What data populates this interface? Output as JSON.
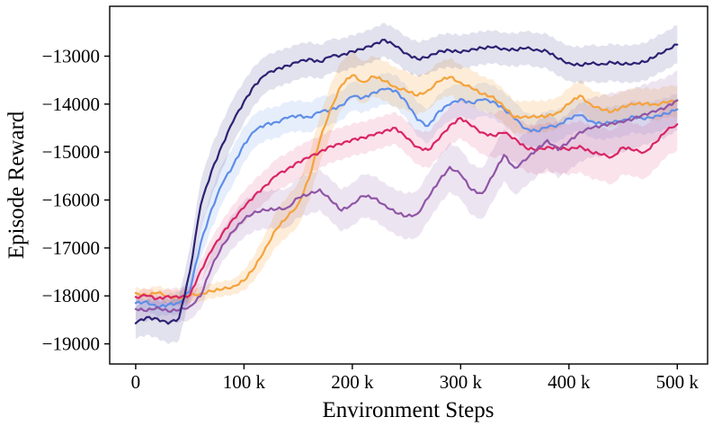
{
  "figure": {
    "background": "#ffffff"
  },
  "chart_data": {
    "type": "line",
    "title": "",
    "xlabel": "Environment Steps",
    "ylabel": "Episode Reward",
    "x_unit": "×1000 environment steps",
    "grid": false,
    "legend": "none",
    "xlim": [
      -24,
      528
    ],
    "ylim": [
      -19420,
      -11960
    ],
    "x_ticks": [
      {
        "value": 0,
        "label": "0"
      },
      {
        "value": 100,
        "label": "100 k"
      },
      {
        "value": 200,
        "label": "200 k"
      },
      {
        "value": 300,
        "label": "300 k"
      },
      {
        "value": 400,
        "label": "400 k"
      },
      {
        "value": 500,
        "label": "500 k"
      }
    ],
    "y_ticks": [
      {
        "value": -13000,
        "label": "−13000"
      },
      {
        "value": -14000,
        "label": "−14000"
      },
      {
        "value": -15000,
        "label": "−15000"
      },
      {
        "value": -16000,
        "label": "−16000"
      },
      {
        "value": -17000,
        "label": "−17000"
      },
      {
        "value": -18000,
        "label": "−18000"
      },
      {
        "value": -19000,
        "label": "−19000"
      }
    ],
    "x": [
      0,
      10,
      20,
      30,
      40,
      50,
      60,
      70,
      80,
      90,
      100,
      110,
      120,
      130,
      140,
      150,
      160,
      170,
      180,
      190,
      200,
      210,
      220,
      230,
      240,
      250,
      260,
      270,
      280,
      290,
      300,
      310,
      320,
      330,
      340,
      350,
      360,
      370,
      380,
      390,
      400,
      410,
      420,
      430,
      440,
      450,
      460,
      470,
      480,
      490,
      500
    ],
    "series": [
      {
        "name": "blue",
        "color": "#5f8ee8",
        "band_color": "rgba(100,149,237,0.16)",
        "values": [
          -18150,
          -18120,
          -18240,
          -18180,
          -18150,
          -17900,
          -16900,
          -16200,
          -15650,
          -15280,
          -14840,
          -14550,
          -14420,
          -14380,
          -14280,
          -14240,
          -14280,
          -14160,
          -14120,
          -14030,
          -13830,
          -13870,
          -13760,
          -13680,
          -13720,
          -13960,
          -14320,
          -14460,
          -14150,
          -14000,
          -13900,
          -13980,
          -13900,
          -13950,
          -14100,
          -14300,
          -14520,
          -14560,
          -14480,
          -14440,
          -14300,
          -14220,
          -14360,
          -14410,
          -14380,
          -14340,
          -14260,
          -14310,
          -14250,
          -14200,
          -14110
        ],
        "band_halfwidth_points": [
          [
            0,
            150
          ],
          [
            50,
            260
          ],
          [
            75,
            420
          ],
          [
            120,
            330
          ],
          [
            200,
            300
          ],
          [
            270,
            360
          ],
          [
            350,
            340
          ],
          [
            430,
            330
          ],
          [
            500,
            330
          ]
        ]
      },
      {
        "name": "orange",
        "color": "#f5a33c",
        "band_color": "rgba(246,166,60,0.20)",
        "values": [
          -17950,
          -17990,
          -17930,
          -18010,
          -18040,
          -17990,
          -17960,
          -17900,
          -17860,
          -17810,
          -17680,
          -17400,
          -17000,
          -16600,
          -16350,
          -16100,
          -15550,
          -14750,
          -14100,
          -13600,
          -13390,
          -13550,
          -13420,
          -13520,
          -13650,
          -13720,
          -13820,
          -13720,
          -13520,
          -13430,
          -13560,
          -13660,
          -13790,
          -13850,
          -14060,
          -14280,
          -14260,
          -14270,
          -14250,
          -14180,
          -13990,
          -13820,
          -14010,
          -14110,
          -14160,
          -14050,
          -14000,
          -13990,
          -14010,
          -13960,
          -13930
        ],
        "band_halfwidth_points": [
          [
            0,
            130
          ],
          [
            90,
            160
          ],
          [
            140,
            420
          ],
          [
            180,
            520
          ],
          [
            220,
            420
          ],
          [
            300,
            380
          ],
          [
            360,
            330
          ],
          [
            430,
            320
          ],
          [
            500,
            330
          ]
        ]
      },
      {
        "name": "crimson",
        "color": "#d92565",
        "band_color": "rgba(217,37,101,0.13)",
        "values": [
          -18030,
          -17990,
          -18060,
          -18010,
          -18030,
          -17990,
          -17480,
          -17050,
          -16700,
          -16400,
          -16150,
          -15900,
          -15700,
          -15480,
          -15360,
          -15210,
          -15110,
          -15000,
          -14880,
          -14830,
          -14740,
          -14700,
          -14640,
          -14560,
          -14500,
          -14700,
          -14900,
          -14960,
          -14720,
          -14450,
          -14290,
          -14450,
          -14600,
          -14660,
          -14590,
          -14720,
          -14910,
          -14960,
          -14900,
          -14910,
          -14950,
          -14880,
          -15000,
          -15050,
          -15110,
          -14900,
          -14960,
          -15010,
          -14800,
          -14550,
          -14420
        ],
        "band_halfwidth_points": [
          [
            0,
            120
          ],
          [
            60,
            220
          ],
          [
            100,
            330
          ],
          [
            160,
            340
          ],
          [
            240,
            330
          ],
          [
            300,
            420
          ],
          [
            360,
            500
          ],
          [
            440,
            560
          ],
          [
            500,
            540
          ]
        ]
      },
      {
        "name": "purple",
        "color": "#8f55a6",
        "band_color": "rgba(143,85,166,0.16)",
        "values": [
          -18270,
          -18310,
          -18240,
          -18320,
          -18290,
          -18230,
          -18000,
          -17400,
          -16950,
          -16650,
          -16400,
          -16250,
          -16210,
          -16190,
          -16170,
          -15950,
          -15880,
          -15790,
          -16000,
          -16220,
          -16090,
          -15910,
          -15960,
          -16110,
          -16260,
          -16340,
          -16300,
          -15950,
          -15600,
          -15320,
          -15460,
          -15790,
          -15870,
          -15480,
          -15060,
          -15340,
          -15160,
          -14950,
          -14760,
          -14950,
          -14780,
          -14590,
          -14500,
          -14450,
          -14400,
          -14370,
          -14300,
          -14210,
          -14150,
          -14060,
          -13920
        ],
        "band_halfwidth_points": [
          [
            0,
            220
          ],
          [
            60,
            280
          ],
          [
            100,
            380
          ],
          [
            160,
            420
          ],
          [
            240,
            470
          ],
          [
            300,
            520
          ],
          [
            360,
            560
          ],
          [
            440,
            640
          ],
          [
            500,
            620
          ]
        ]
      },
      {
        "name": "indigo",
        "color": "#2c2273",
        "band_color": "rgba(62,58,140,0.15)",
        "values": [
          -18560,
          -18450,
          -18480,
          -18570,
          -18470,
          -17500,
          -16100,
          -15400,
          -14850,
          -14350,
          -13950,
          -13600,
          -13380,
          -13270,
          -13200,
          -13120,
          -13060,
          -13120,
          -13000,
          -12980,
          -12900,
          -12850,
          -12750,
          -12660,
          -12790,
          -12950,
          -13060,
          -13020,
          -12900,
          -12880,
          -12920,
          -12860,
          -12830,
          -12810,
          -12850,
          -12870,
          -12830,
          -12870,
          -12900,
          -13050,
          -13150,
          -13190,
          -13150,
          -13170,
          -13130,
          -13170,
          -13150,
          -13120,
          -13000,
          -12870,
          -12760
        ],
        "band_halfwidth_points": [
          [
            0,
            330
          ],
          [
            45,
            480
          ],
          [
            70,
            520
          ],
          [
            120,
            380
          ],
          [
            200,
            340
          ],
          [
            260,
            360
          ],
          [
            340,
            340
          ],
          [
            420,
            380
          ],
          [
            500,
            400
          ]
        ]
      }
    ]
  }
}
